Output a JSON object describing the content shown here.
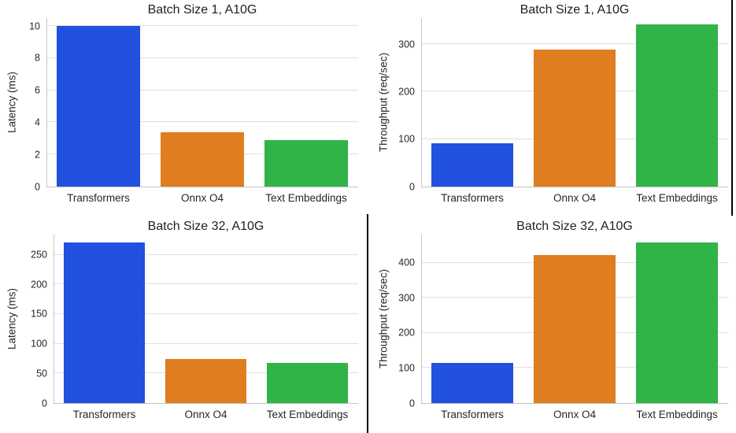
{
  "colors": {
    "bar_blue": "#2251DF",
    "bar_orange": "#DF7D20",
    "bar_green": "#30B347",
    "grid": "#dfdfdf",
    "spine": "#c9c9c9",
    "baseline": "#c2c2c2",
    "text": "#262626",
    "divider": "#000000"
  },
  "chart_data": [
    {
      "type": "bar",
      "title": "Batch Size 1, A10G",
      "xlabel": "",
      "ylabel": "Latency (ms)",
      "categories": [
        "Transformers",
        "Onnx O4",
        "Text Embeddings"
      ],
      "values": [
        10.0,
        3.4,
        2.9
      ],
      "yticks": [
        0,
        2,
        4,
        6,
        8,
        10
      ],
      "ylim": [
        0,
        10.5
      ],
      "bar_colors": [
        "#2251DF",
        "#DF7D20",
        "#30B347"
      ],
      "grid": true,
      "legend": null
    },
    {
      "type": "bar",
      "title": "Batch Size 1, A10G",
      "xlabel": "",
      "ylabel": "Throughput (req/sec)",
      "categories": [
        "Transformers",
        "Onnx O4",
        "Text Embeddings"
      ],
      "values": [
        92,
        289,
        341
      ],
      "yticks": [
        0,
        100,
        200,
        300
      ],
      "ylim": [
        0,
        355
      ],
      "bar_colors": [
        "#2251DF",
        "#DF7D20",
        "#30B347"
      ],
      "grid": true,
      "legend": null
    },
    {
      "type": "bar",
      "title": "Batch Size 32, A10G",
      "xlabel": "",
      "ylabel": "Latency (ms)",
      "categories": [
        "Transformers",
        "Onnx O4",
        "Text Embeddings"
      ],
      "values": [
        271,
        75,
        68
      ],
      "yticks": [
        0,
        50,
        100,
        150,
        200,
        250
      ],
      "ylim": [
        0,
        284
      ],
      "bar_colors": [
        "#2251DF",
        "#DF7D20",
        "#30B347"
      ],
      "grid": true,
      "legend": null
    },
    {
      "type": "bar",
      "title": "Batch Size 32, A10G",
      "xlabel": "",
      "ylabel": "Throughput (req/sec)",
      "categories": [
        "Transformers",
        "Onnx O4",
        "Text Embeddings"
      ],
      "values": [
        115,
        421,
        458
      ],
      "yticks": [
        0,
        100,
        200,
        300,
        400
      ],
      "ylim": [
        0,
        480
      ],
      "bar_colors": [
        "#2251DF",
        "#DF7D20",
        "#30B347"
      ],
      "grid": true,
      "legend": null
    }
  ]
}
